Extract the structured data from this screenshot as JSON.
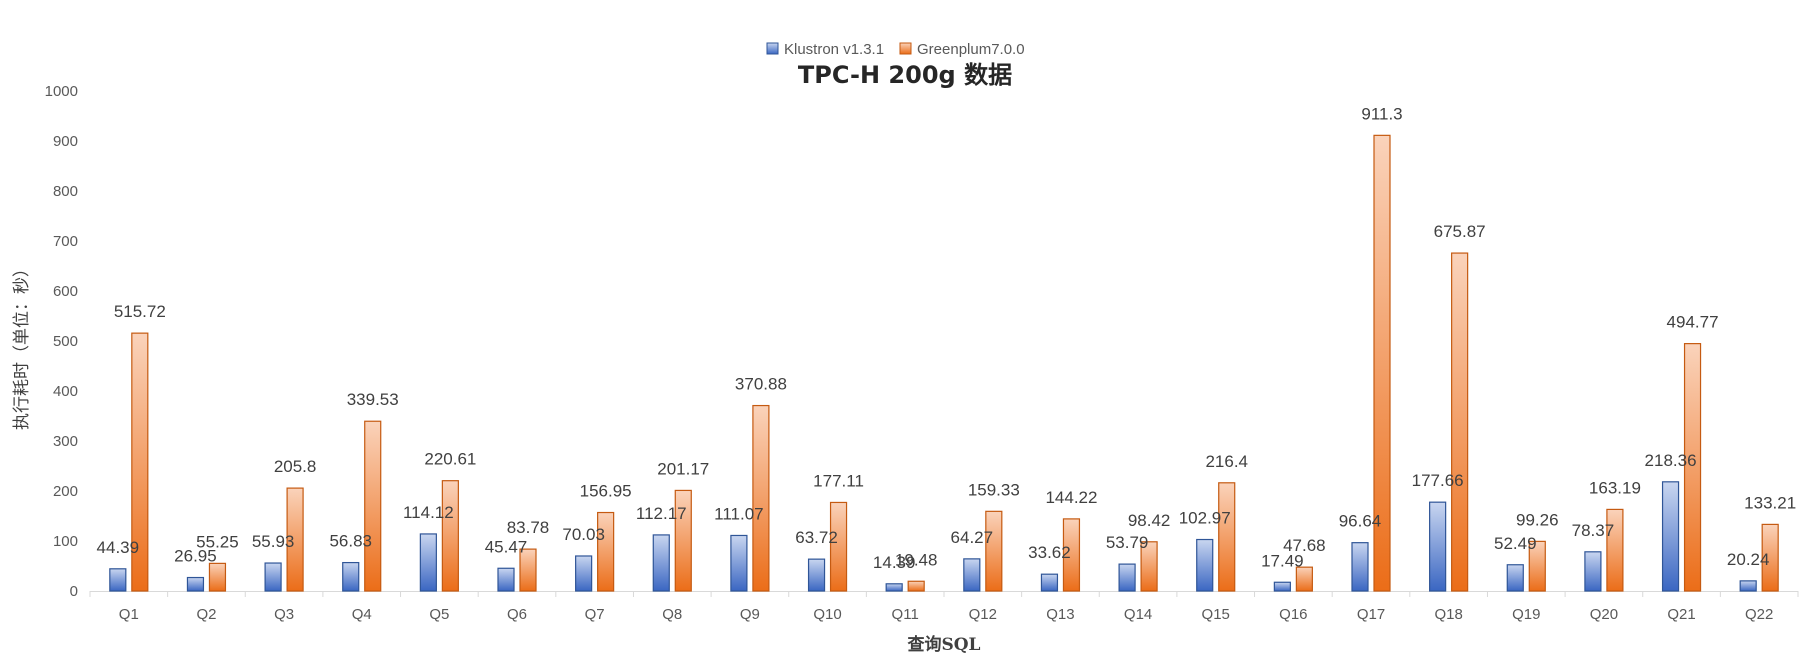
{
  "chart_data": {
    "type": "bar",
    "title": "TPC-H 200g 数据",
    "xlabel": "查询SQL",
    "ylabel": "执行耗时（单位：秒）",
    "ylim": [
      0,
      1000
    ],
    "yticks": [
      0,
      100,
      200,
      300,
      400,
      500,
      600,
      700,
      800,
      900,
      1000
    ],
    "grid": false,
    "legend_position": "top-center",
    "categories": [
      "Q1",
      "Q2",
      "Q3",
      "Q4",
      "Q5",
      "Q6",
      "Q7",
      "Q8",
      "Q9",
      "Q10",
      "Q11",
      "Q12",
      "Q13",
      "Q14",
      "Q15",
      "Q16",
      "Q17",
      "Q18",
      "Q19",
      "Q20",
      "Q21",
      "Q22"
    ],
    "series": [
      {
        "name": "Klustron v1.3.1",
        "color": "#4472C4",
        "values": [
          44.39,
          26.95,
          55.93,
          56.83,
          114.12,
          45.47,
          70.03,
          112.17,
          111.07,
          63.72,
          14.39,
          64.27,
          33.62,
          53.79,
          102.97,
          17.49,
          96.64,
          177.66,
          52.49,
          78.37,
          218.36,
          20.24
        ],
        "labels": [
          "44.39",
          "26.95",
          "55.93",
          "56.83",
          "114.12",
          "45.47",
          "70.03",
          "112.17",
          "111.07",
          "63.72",
          "14.39",
          "64.27",
          "33.62",
          "53.79",
          "102.97",
          "17.49",
          "96.64",
          "177.66",
          "52.49",
          "78.37",
          "218.36",
          "20.24"
        ]
      },
      {
        "name": "Greenplum7.0.0",
        "color": "#ED7D31",
        "values": [
          515.72,
          55.25,
          205.8,
          339.53,
          220.61,
          83.78,
          156.95,
          201.17,
          370.88,
          177.11,
          19.48,
          159.33,
          144.22,
          98.42,
          216.4,
          47.68,
          911.3,
          675.87,
          99.26,
          163.19,
          494.77,
          133.21
        ],
        "labels": [
          "515.72",
          "55.25",
          "205.8",
          "339.53",
          "220.61",
          "83.78",
          "156.95",
          "201.17",
          "370.88",
          "177.11",
          "19.48",
          "159.33",
          "144.22",
          "98.42",
          "216.4",
          "47.68",
          "911.3",
          "675.87",
          "99.26",
          "163.19",
          "494.77",
          "133.21"
        ]
      }
    ]
  }
}
